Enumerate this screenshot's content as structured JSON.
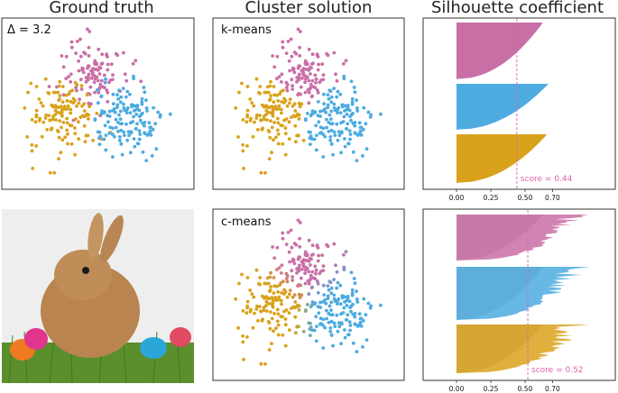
{
  "column_titles": {
    "ground_truth": "Ground truth",
    "cluster_solution": "Cluster solution",
    "silhouette": "Silhouette coefficient"
  },
  "colors": {
    "pink": "#c96fa6",
    "blue": "#4dabe0",
    "gold": "#d9a21b",
    "score_line": "#e060a8",
    "grey": "#bdbdbd"
  },
  "chart_data": [
    {
      "type": "scatter",
      "panel": "ground-truth",
      "annotation": "Δ = 3.2",
      "series": [
        {
          "color": "pink",
          "center": [
            -0.1,
            1.6
          ],
          "n": 110
        },
        {
          "color": "gold",
          "center": [
            -1.4,
            -0.2
          ],
          "n": 130
        },
        {
          "color": "blue",
          "center": [
            1.3,
            -0.4
          ],
          "n": 140
        }
      ]
    },
    {
      "type": "scatter",
      "panel": "k-means",
      "label": "k-means",
      "series": [
        {
          "color": "pink",
          "center": [
            -0.1,
            1.6
          ],
          "n": 110
        },
        {
          "color": "gold",
          "center": [
            -1.4,
            -0.2
          ],
          "n": 130
        },
        {
          "color": "blue",
          "center": [
            1.3,
            -0.4
          ],
          "n": 140
        }
      ]
    },
    {
      "type": "scatter",
      "panel": "c-means",
      "label": "c-means",
      "series": [
        {
          "color": "pink",
          "center": [
            -0.1,
            1.6
          ],
          "n": 110
        },
        {
          "color": "gold",
          "center": [
            -1.4,
            -0.2
          ],
          "n": 130
        },
        {
          "color": "blue",
          "center": [
            1.3,
            -0.4
          ],
          "n": 140
        }
      ]
    },
    {
      "type": "area",
      "panel": "silhouette-kmeans",
      "score_label": "score = 0.44",
      "score": 0.44,
      "xticks": [
        "0.00",
        "0.25",
        "0.50",
        "0.70"
      ],
      "xlim": [
        -0.05,
        1.0
      ],
      "clusters": [
        {
          "color": "pink",
          "max": 0.63
        },
        {
          "color": "blue",
          "max": 0.67
        },
        {
          "color": "gold",
          "max": 0.66
        }
      ]
    },
    {
      "type": "area",
      "panel": "silhouette-cmeans",
      "score_label": "score = 0.52",
      "score": 0.52,
      "xticks": [
        "0.00",
        "0.25",
        "0.50",
        "0.70"
      ],
      "xlim": [
        -0.05,
        1.0
      ],
      "clusters": [
        {
          "color": "pink",
          "max": 1.0
        },
        {
          "color": "blue",
          "max": 1.0
        },
        {
          "color": "gold",
          "max": 1.0
        }
      ]
    }
  ]
}
